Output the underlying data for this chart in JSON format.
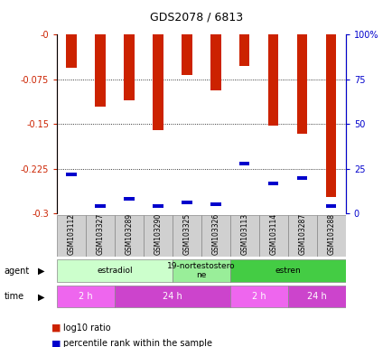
{
  "title": "GDS2078 / 6813",
  "samples": [
    "GSM103112",
    "GSM103327",
    "GSM103289",
    "GSM103290",
    "GSM103325",
    "GSM103326",
    "GSM103113",
    "GSM103114",
    "GSM103287",
    "GSM103288"
  ],
  "log10_ratio": [
    -0.055,
    -0.12,
    -0.11,
    -0.16,
    -0.068,
    -0.093,
    -0.052,
    -0.153,
    -0.167,
    -0.272
  ],
  "percentile_rank": [
    22,
    4,
    8,
    4,
    6,
    5,
    28,
    17,
    20,
    4
  ],
  "ylim_left": [
    -0.3,
    0
  ],
  "ylim_right": [
    0,
    100
  ],
  "yticks_left": [
    0,
    -0.075,
    -0.15,
    -0.225,
    -0.3
  ],
  "yticks_right": [
    0,
    25,
    50,
    75,
    100
  ],
  "ytick_labels_left": [
    "-0",
    "-0.075",
    "-0.15",
    "-0.225",
    "-0.3"
  ],
  "ytick_labels_right": [
    "0",
    "25",
    "50",
    "75",
    "100%"
  ],
  "bar_color": "#cc2200",
  "percentile_color": "#0000cc",
  "agent_labels": [
    {
      "label": "estradiol",
      "start": 0,
      "end": 4,
      "color": "#ccffcc"
    },
    {
      "label": "19-nortestostero\nne",
      "start": 4,
      "end": 6,
      "color": "#99ee99"
    },
    {
      "label": "estren",
      "start": 6,
      "end": 10,
      "color": "#44cc44"
    }
  ],
  "time_labels": [
    {
      "label": "2 h",
      "start": 0,
      "end": 2,
      "color": "#ee66ee"
    },
    {
      "label": "24 h",
      "start": 2,
      "end": 6,
      "color": "#cc44cc"
    },
    {
      "label": "2 h",
      "start": 6,
      "end": 8,
      "color": "#ee66ee"
    },
    {
      "label": "24 h",
      "start": 8,
      "end": 10,
      "color": "#cc44cc"
    }
  ],
  "bar_width": 0.35,
  "background_color": "#ffffff",
  "grid_color": "#000000",
  "tick_color_left": "#cc2200",
  "tick_color_right": "#0000cc",
  "sample_box_color": "#d0d0d0"
}
